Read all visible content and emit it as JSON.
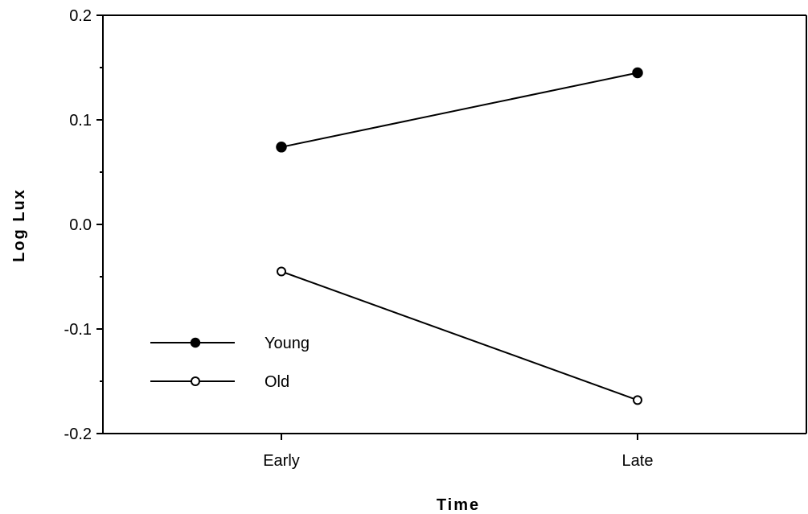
{
  "chart_data": {
    "type": "line",
    "title": "",
    "xlabel": "Time",
    "ylabel": "Log Lux",
    "categories": [
      "Early",
      "Late"
    ],
    "ylim": [
      -0.2,
      0.2
    ],
    "yticks": [
      "-0.2",
      "-0.1",
      "0.0",
      "0.1",
      "0.2"
    ],
    "yticks_values": [
      -0.2,
      -0.1,
      0.0,
      0.1,
      0.2
    ],
    "grid": false,
    "legend_position": "bottom-left",
    "series": [
      {
        "name": "Young",
        "marker": "filled-circle",
        "color": "#000000",
        "values": [
          0.074,
          0.145
        ]
      },
      {
        "name": "Old",
        "marker": "open-circle",
        "color": "#000000",
        "values": [
          -0.045,
          -0.168
        ]
      }
    ]
  }
}
